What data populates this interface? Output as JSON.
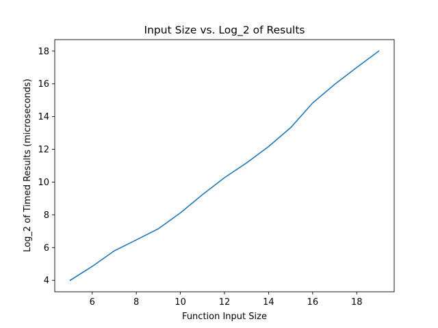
{
  "chart_data": {
    "type": "line",
    "title": "Input Size vs. Log_2 of Results",
    "xlabel": "Function Input Size",
    "ylabel": "Log_2 of Timed Results (microseconds)",
    "xlim": [
      4.3,
      19.7
    ],
    "ylim": [
      3.3,
      18.7
    ],
    "xticks": [
      6,
      8,
      10,
      12,
      14,
      16,
      18
    ],
    "yticks": [
      4,
      6,
      8,
      10,
      12,
      14,
      16,
      18
    ],
    "grid": false,
    "series": [
      {
        "color": "#1f77b4",
        "x": [
          5,
          6,
          7,
          8,
          9,
          10,
          11,
          12,
          13,
          14,
          15,
          16,
          17,
          18,
          19
        ],
        "y": [
          4.0,
          4.85,
          5.8,
          6.47,
          7.15,
          8.12,
          9.23,
          10.27,
          11.17,
          12.17,
          13.32,
          14.83,
          15.97,
          17.0,
          18.0
        ]
      }
    ]
  }
}
